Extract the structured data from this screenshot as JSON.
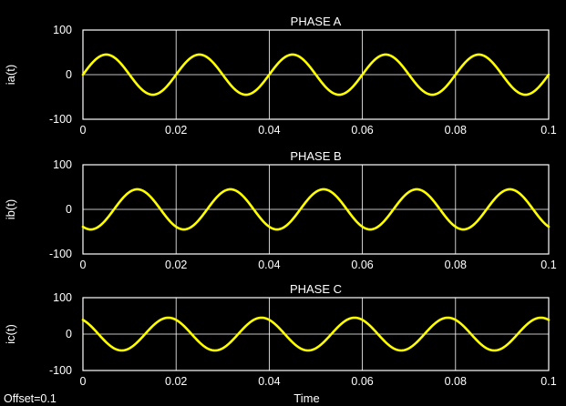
{
  "scope": {
    "offset_label": "Offset=0.1",
    "colors": {
      "background": "#000000",
      "axes": "#ffffff",
      "grid": "#ffffff",
      "trace": "#ffff00"
    }
  },
  "chart_data": [
    {
      "type": "line",
      "title": "PHASE A",
      "xlabel": "",
      "ylabel": "ia(t)",
      "xlim": [
        0,
        0.1
      ],
      "ylim": [
        -100,
        100
      ],
      "xticks": [
        0,
        0.02,
        0.04,
        0.06,
        0.08,
        0.1
      ],
      "xtick_labels": [
        "0",
        "0.02",
        "0.04",
        "0.06",
        "0.08",
        "0.1"
      ],
      "yticks": [
        -100,
        0,
        100
      ],
      "ytick_labels": [
        "-100",
        "0",
        "100"
      ],
      "grid": true,
      "series": [
        {
          "color": "#ffff00",
          "waveform": "sinusoid",
          "amplitude": 45,
          "frequency_hz": 50,
          "phase_deg": 0
        }
      ]
    },
    {
      "type": "line",
      "title": "PHASE B",
      "xlabel": "",
      "ylabel": "ib(t)",
      "xlim": [
        0,
        0.1
      ],
      "ylim": [
        -100,
        100
      ],
      "xticks": [
        0,
        0.02,
        0.04,
        0.06,
        0.08,
        0.1
      ],
      "xtick_labels": [
        "0",
        "0.02",
        "0.04",
        "0.06",
        "0.08",
        "0.1"
      ],
      "yticks": [
        -100,
        0,
        100
      ],
      "ytick_labels": [
        "-100",
        "0",
        "100"
      ],
      "grid": true,
      "series": [
        {
          "color": "#ffff00",
          "waveform": "sinusoid",
          "amplitude": 45,
          "frequency_hz": 50,
          "phase_deg": -120
        }
      ]
    },
    {
      "type": "line",
      "title": "PHASE C",
      "xlabel": "Time",
      "ylabel": "ic(t)",
      "xlim": [
        0,
        0.1
      ],
      "ylim": [
        -100,
        100
      ],
      "xticks": [
        0,
        0.02,
        0.04,
        0.06,
        0.08,
        0.1
      ],
      "xtick_labels": [
        "0",
        "0.02",
        "0.04",
        "0.06",
        "0.08",
        "0.1"
      ],
      "yticks": [
        -100,
        0,
        100
      ],
      "ytick_labels": [
        "-100",
        "0",
        "100"
      ],
      "grid": true,
      "series": [
        {
          "color": "#ffff00",
          "waveform": "sinusoid",
          "amplitude": 45,
          "frequency_hz": 50,
          "phase_deg": 120
        }
      ]
    }
  ]
}
